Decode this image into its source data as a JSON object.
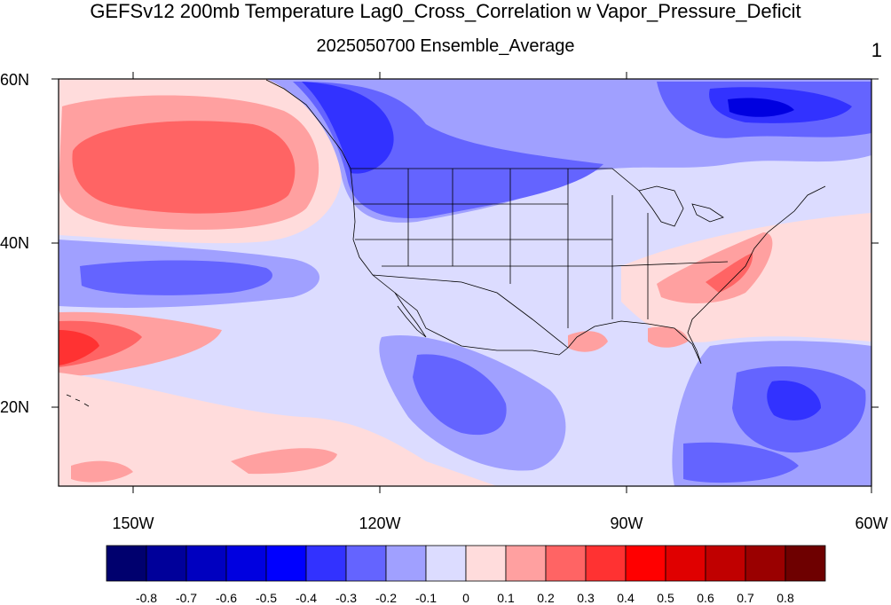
{
  "title": "GEFSv12 200mb Temperature Lag0_Cross_Correlation w Vapor_Pressure_Deficit",
  "subtitle": "2025050700 Ensemble_Average",
  "panel_number": "1",
  "lat_labels": [
    "60N",
    "40N",
    "20N"
  ],
  "lon_labels": [
    "150W",
    "120W",
    "90W",
    "60W"
  ],
  "map_extent": {
    "lon_min": -160,
    "lon_max": -60,
    "lat_min": 10,
    "lat_max": 60
  },
  "colorbar": {
    "levels": [
      "-0.8",
      "-0.7",
      "-0.6",
      "-0.5",
      "-0.4",
      "-0.3",
      "-0.2",
      "-0.1",
      "0",
      "0.1",
      "0.2",
      "0.3",
      "0.4",
      "0.5",
      "0.6",
      "0.7",
      "0.8"
    ],
    "colors": [
      "#00006e",
      "#00009a",
      "#0000c0",
      "#0000e0",
      "#0000ff",
      "#3232ff",
      "#6464ff",
      "#a0a0ff",
      "#dcdcff",
      "#ffdcdc",
      "#ffa0a0",
      "#ff6464",
      "#ff3232",
      "#ff0000",
      "#e00000",
      "#c00000",
      "#9a0000",
      "#6e0000"
    ]
  }
}
